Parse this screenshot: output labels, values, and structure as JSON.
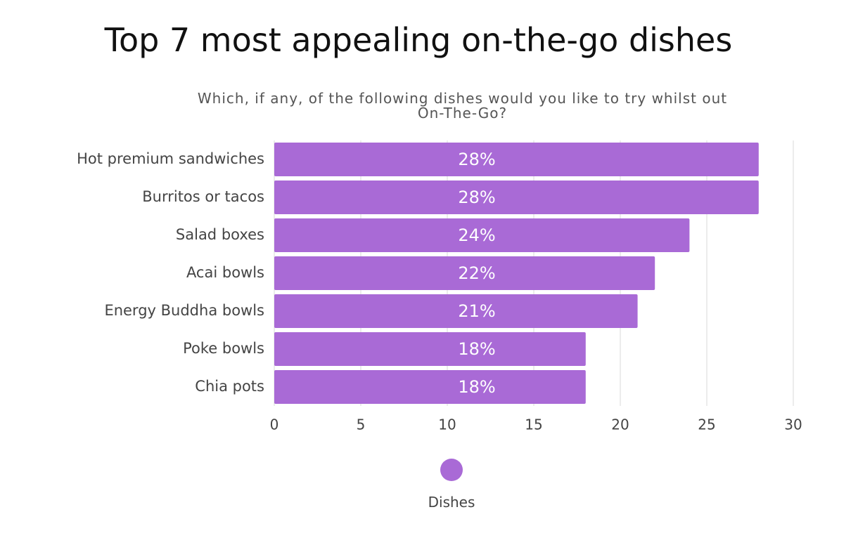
{
  "chart_data": {
    "type": "bar",
    "orientation": "horizontal",
    "title": "Top 7 most appealing on-the-go dishes",
    "subtitle": "Which, if any, of the following dishes would you like to try whilst out On-The-Go?",
    "categories": [
      "Hot premium sandwiches",
      "Burritos or tacos",
      "Salad boxes",
      "Acai bowls",
      "Energy Buddha bowls",
      "Poke bowls",
      "Chia pots"
    ],
    "series": [
      {
        "name": "Dishes",
        "values": [
          28,
          28,
          24,
          22,
          21,
          18,
          18
        ],
        "labels": [
          "28%",
          "28%",
          "24%",
          "22%",
          "21%",
          "18%",
          "18%"
        ]
      }
    ],
    "xlim": [
      0,
      30
    ],
    "xticks": [
      "0",
      "5",
      "10",
      "15",
      "20",
      "25",
      "30"
    ],
    "grid": "vertical",
    "legend": "bottom-center",
    "colors": {
      "bar": "#a96ad6",
      "grid": "#d9d9d9",
      "bar_label": "#ffffff",
      "axis_text": "#444444"
    }
  }
}
